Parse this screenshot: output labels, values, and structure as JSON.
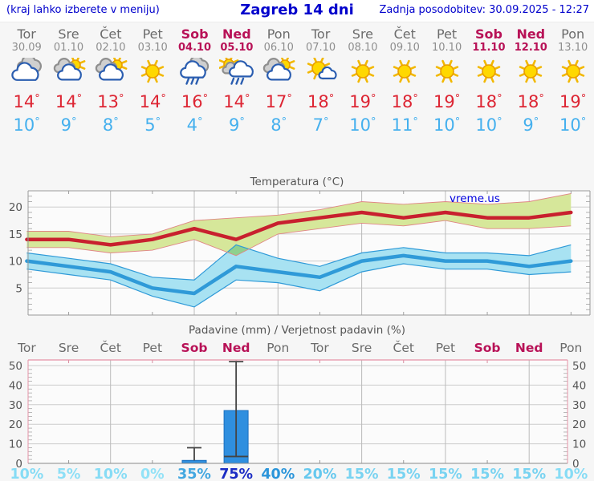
{
  "header": {
    "left_hint": "(kraj lahko izberete v meniju)",
    "title": "Zagreb 14 dni",
    "last_update": "Zadnja posodobitev: 30.09.2025 - 12:27"
  },
  "colors": {
    "weekday_label": "#6b6b6b",
    "weekend_label": "#b81257",
    "high_temp": "#dd2533",
    "low_temp": "#45b0ee",
    "link_blue": "#0000cc"
  },
  "days": [
    {
      "name": "Tor",
      "date": "30.09",
      "weekend": false,
      "icon": "cloudy-icon",
      "high": "14°",
      "low": "10°"
    },
    {
      "name": "Sre",
      "date": "01.10",
      "weekend": false,
      "icon": "partly-sunny-icon",
      "high": "14°",
      "low": "9°"
    },
    {
      "name": "Čet",
      "date": "02.10",
      "weekend": false,
      "icon": "partly-sunny-icon",
      "high": "13°",
      "low": "8°"
    },
    {
      "name": "Pet",
      "date": "03.10",
      "weekend": false,
      "icon": "sunny-icon",
      "high": "14°",
      "low": "5°"
    },
    {
      "name": "Sob",
      "date": "04.10",
      "weekend": true,
      "icon": "rain-icon",
      "high": "16°",
      "low": "4°"
    },
    {
      "name": "Ned",
      "date": "05.10",
      "weekend": true,
      "icon": "sun-shower-icon",
      "high": "14°",
      "low": "9°"
    },
    {
      "name": "Pon",
      "date": "06.10",
      "weekend": false,
      "icon": "partly-sunny-icon",
      "high": "17°",
      "low": "8°"
    },
    {
      "name": "Tor",
      "date": "07.10",
      "weekend": false,
      "icon": "mostly-sunny-icon",
      "high": "18°",
      "low": "7°"
    },
    {
      "name": "Sre",
      "date": "08.10",
      "weekend": false,
      "icon": "sunny-icon",
      "high": "19°",
      "low": "10°"
    },
    {
      "name": "Čet",
      "date": "09.10",
      "weekend": false,
      "icon": "sunny-icon",
      "high": "18°",
      "low": "11°"
    },
    {
      "name": "Pet",
      "date": "10.10",
      "weekend": false,
      "icon": "sunny-icon",
      "high": "19°",
      "low": "10°"
    },
    {
      "name": "Sob",
      "date": "11.10",
      "weekend": true,
      "icon": "sunny-icon",
      "high": "18°",
      "low": "10°"
    },
    {
      "name": "Ned",
      "date": "12.10",
      "weekend": true,
      "icon": "sunny-icon",
      "high": "18°",
      "low": "9°"
    },
    {
      "name": "Pon",
      "date": "13.10",
      "weekend": false,
      "icon": "sunny-icon",
      "high": "19°",
      "low": "10°"
    }
  ],
  "chart_data": [
    {
      "id": "temperature",
      "type": "line",
      "title": "Temperatura (°C)",
      "watermark": "vreme.us",
      "ylabel": "",
      "y_ticks": [
        5,
        10,
        15,
        20
      ],
      "y_range": [
        0,
        23
      ],
      "grid": true,
      "categories": [
        "Tor",
        "Sre",
        "Čet",
        "Pet",
        "Sob",
        "Ned",
        "Pon",
        "Tor",
        "Sre",
        "Čet",
        "Pet",
        "Sob",
        "Ned",
        "Pon"
      ],
      "series": [
        {
          "name": "max-temp",
          "color": "#c8202e",
          "values": [
            14,
            14,
            13,
            14,
            16,
            14,
            17,
            18,
            19,
            18,
            19,
            18,
            18,
            19
          ]
        },
        {
          "name": "min-temp",
          "color": "#2f9ad8",
          "values": [
            10,
            9,
            8,
            5,
            4,
            9,
            8,
            7,
            10,
            11,
            10,
            10,
            9,
            10
          ]
        }
      ],
      "bands": [
        {
          "name": "max-range",
          "fill": "#d6e79a",
          "edge": "#e08585",
          "upper": [
            15.5,
            15.5,
            14.5,
            15,
            17.5,
            18,
            18.5,
            19.5,
            21,
            20.5,
            21,
            20.5,
            21,
            22.5
          ],
          "lower": [
            12.5,
            12.5,
            11.5,
            12,
            14,
            11,
            15,
            16,
            17,
            16.5,
            17.5,
            16,
            16,
            16.5
          ]
        },
        {
          "name": "min-range",
          "fill": "#a8e2f2",
          "edge": "#2f9ad8",
          "upper": [
            11.5,
            10.5,
            9.5,
            7,
            6.5,
            13,
            10.5,
            9,
            11.5,
            12.5,
            11.5,
            11.5,
            11,
            13
          ],
          "lower": [
            8.5,
            7.5,
            6.5,
            3.5,
            1.5,
            6.5,
            6,
            4.5,
            8,
            9.5,
            8.5,
            8.5,
            7.5,
            8
          ]
        }
      ],
      "overlap_fill": "#8ed08e"
    },
    {
      "id": "precipitation",
      "type": "bar",
      "title": "Padavine (mm) / Verjetnost padavin (%)",
      "y_ticks": [
        0,
        10,
        20,
        30,
        40,
        50
      ],
      "y_range": [
        0,
        52.5
      ],
      "grid": true,
      "categories": [
        "Tor",
        "Sre",
        "Čet",
        "Pet",
        "Sob",
        "Ned",
        "Pon",
        "Tor",
        "Sre",
        "Čet",
        "Pet",
        "Sob",
        "Ned",
        "Pon"
      ],
      "weekend_flags": [
        false,
        false,
        false,
        false,
        true,
        true,
        false,
        false,
        false,
        false,
        false,
        true,
        true,
        false
      ],
      "values_mm": [
        0,
        0,
        0,
        0,
        1.5,
        27,
        0,
        0,
        0,
        0,
        0,
        0,
        0,
        0
      ],
      "range_low_mm": [
        null,
        null,
        null,
        null,
        1.5,
        3.5,
        null,
        null,
        null,
        null,
        null,
        null,
        null,
        null
      ],
      "range_high_mm": [
        null,
        null,
        null,
        null,
        8,
        52,
        null,
        null,
        null,
        null,
        null,
        null,
        null,
        null
      ],
      "bar_fill": "#2f8fdf",
      "probability_pct": [
        10,
        5,
        10,
        0,
        35,
        75,
        40,
        20,
        15,
        15,
        15,
        15,
        15,
        10
      ],
      "probability_labels": [
        "10%",
        "5%",
        "10%",
        "0%",
        "35%",
        "75%",
        "40%",
        "20%",
        "15%",
        "15%",
        "15%",
        "15%",
        "15%",
        "10%"
      ],
      "probability_colors": [
        "#87dcf5",
        "#8edff6",
        "#87dcf5",
        "#93e2f7",
        "#43a7e0",
        "#1b2cc4",
        "#2b95da",
        "#65c8ee",
        "#79d3f1",
        "#79d3f1",
        "#79d3f1",
        "#79d3f1",
        "#79d3f1",
        "#87dcf5"
      ]
    }
  ]
}
